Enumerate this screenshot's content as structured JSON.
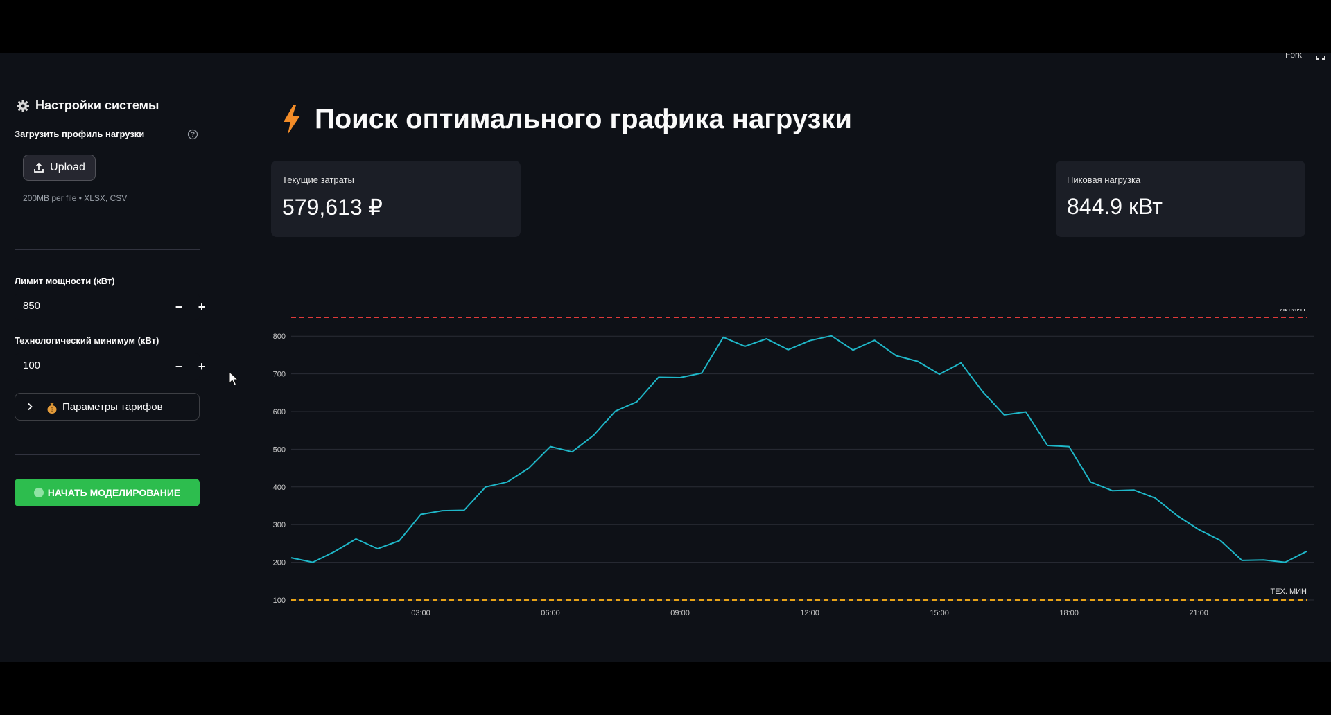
{
  "header": {
    "fork_label": "Fork"
  },
  "sidebar": {
    "title": "Настройки системы",
    "upload": {
      "label": "Загрузить профиль нагрузки",
      "button_label": "Upload",
      "note": "200MB per file • XLSX, CSV"
    },
    "power_limit": {
      "label": "Лимит мощности (кВт)",
      "value": "850",
      "minus": "−",
      "plus": "+"
    },
    "tech_min": {
      "label": "Технологический минимум (кВт)",
      "value": "100",
      "minus": "−",
      "plus": "+"
    },
    "tariffs_expander": {
      "label": "Параметры тарифов"
    },
    "start_button": {
      "label": "НАЧАТЬ МОДЕЛИРОВАНИЕ"
    }
  },
  "main": {
    "title": "Поиск оптимального графика нагрузки",
    "metrics": [
      {
        "label": "Текущие затраты",
        "value": "579,613 ₽"
      },
      {
        "label": "Пиковая нагрузка",
        "value": "844.9 кВт"
      }
    ]
  },
  "colors": {
    "line": "#1fb7c8",
    "limit_line": "#e03a3a",
    "min_line": "#e8a317",
    "button_green": "#2dbd4e",
    "icon_orange": "#f28c28"
  },
  "icons": [
    "gear-icon",
    "help-icon",
    "upload-icon",
    "chevron-right-icon",
    "money-bag-icon",
    "bolt-icon",
    "fullscreen-icon",
    "cursor-icon"
  ],
  "chart_data": {
    "type": "line",
    "x_tick_labels": [
      "03:00",
      "06:00",
      "09:00",
      "12:00",
      "15:00",
      "18:00",
      "21:00"
    ],
    "y_tick_labels": [
      "100",
      "200",
      "300",
      "400",
      "500",
      "600",
      "700",
      "800"
    ],
    "ylim": [
      100,
      850
    ],
    "x_range_hours": [
      0,
      23.5
    ],
    "grid": true,
    "series": [
      {
        "x_hours": [
          0,
          0.5,
          1,
          1.5,
          2,
          2.5,
          3,
          3.5,
          4,
          4.5,
          5,
          5.5,
          6,
          6.5,
          7,
          7.5,
          8,
          8.5,
          9,
          9.5,
          10,
          10.5,
          11,
          11.5,
          12,
          12.5,
          13,
          13.5,
          14,
          14.5,
          15,
          15.5,
          16,
          16.5,
          17,
          17.5,
          18,
          18.5,
          19,
          19.5,
          20,
          20.5,
          21,
          21.5,
          22,
          22.5,
          23,
          23.5
        ],
        "values": [
          212,
          200,
          228,
          262,
          236,
          257,
          327,
          337,
          338,
          400,
          413,
          450,
          507,
          493,
          537,
          601,
          626,
          691,
          690,
          702,
          797,
          773,
          793,
          764,
          788,
          801,
          763,
          789,
          748,
          733,
          699,
          729,
          653,
          591,
          599,
          510,
          507,
          413,
          390,
          392,
          370,
          324,
          287,
          258,
          205,
          206,
          200,
          229
        ]
      }
    ],
    "reference_lines": [
      {
        "label": "ЛИМИТ",
        "value": 850
      },
      {
        "label": "ТЕХ. МИН",
        "value": 100
      }
    ]
  }
}
